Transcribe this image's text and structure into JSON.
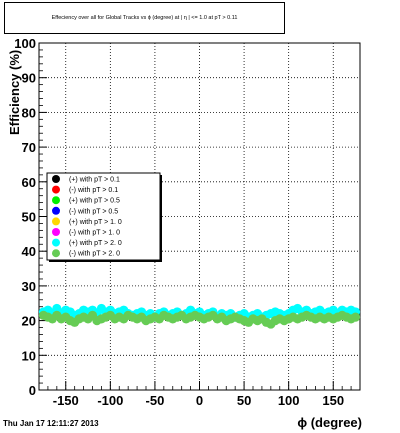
{
  "title_box": {
    "text": "Effeciency over all for Global Tracks vs ϕ (degree) at | η | <= 1.0 at pT > 0.11"
  },
  "timestamp": "Thu Jan 17 12:11:27 2013",
  "chart_data": {
    "type": "scatter",
    "title": "Effeciency over all for Global Tracks vs ϕ (degree) at | η | <= 1.0 at pT > 0.11",
    "xlabel": "ϕ (degree)",
    "ylabel": "Efficiency (%)",
    "xlim": [
      -180,
      180
    ],
    "ylim": [
      0,
      100
    ],
    "x_ticks": [
      -150,
      -100,
      -50,
      0,
      50,
      100,
      150
    ],
    "y_ticks": [
      0,
      10,
      20,
      30,
      40,
      50,
      60,
      70,
      80,
      90,
      100
    ],
    "grid": true,
    "legend_position": "middle-left",
    "series": [
      {
        "name": "(+) with pT > 0.1",
        "color": "#000000",
        "points": []
      },
      {
        "name": "(-) with pT > 0.1",
        "color": "#ff0000",
        "points": []
      },
      {
        "name": "(+) with pT > 0.5",
        "color": "#00ee00",
        "points": []
      },
      {
        "name": "(-) with pT > 0.5",
        "color": "#0000ff",
        "points": []
      },
      {
        "name": "(+) with pT > 1. 0",
        "color": "#ffd700",
        "points": []
      },
      {
        "name": "(-) with pT > 1. 0",
        "color": "#ff00ff",
        "points": []
      },
      {
        "name": "(+) with pT > 2. 0",
        "color": "#00ffff",
        "points": [
          [
            -175,
            22.5
          ],
          [
            -170,
            23
          ],
          [
            -165,
            22
          ],
          [
            -160,
            23.5
          ],
          [
            -155,
            22
          ],
          [
            -150,
            23
          ],
          [
            -145,
            22.5
          ],
          [
            -140,
            21.5
          ],
          [
            -135,
            22
          ],
          [
            -130,
            23
          ],
          [
            -125,
            22.5
          ],
          [
            -120,
            23
          ],
          [
            -115,
            22
          ],
          [
            -110,
            23.5
          ],
          [
            -105,
            22.5
          ],
          [
            -100,
            23
          ],
          [
            -95,
            22
          ],
          [
            -90,
            22.5
          ],
          [
            -85,
            23
          ],
          [
            -80,
            22
          ],
          [
            -75,
            21.5
          ],
          [
            -70,
            22
          ],
          [
            -65,
            22.5
          ],
          [
            -60,
            21.5
          ],
          [
            -55,
            22
          ],
          [
            -50,
            21
          ],
          [
            -45,
            22
          ],
          [
            -40,
            22.5
          ],
          [
            -35,
            21.5
          ],
          [
            -30,
            22
          ],
          [
            -25,
            22.5
          ],
          [
            -20,
            21.5
          ],
          [
            -15,
            22
          ],
          [
            -10,
            23
          ],
          [
            -5,
            22
          ],
          [
            0,
            22.5
          ],
          [
            5,
            21.5
          ],
          [
            10,
            22
          ],
          [
            15,
            22.5
          ],
          [
            20,
            21
          ],
          [
            25,
            22
          ],
          [
            30,
            21.5
          ],
          [
            35,
            22
          ],
          [
            40,
            21
          ],
          [
            45,
            21.5
          ],
          [
            50,
            22
          ],
          [
            55,
            21
          ],
          [
            60,
            21.5
          ],
          [
            65,
            22
          ],
          [
            70,
            21
          ],
          [
            75,
            21.5
          ],
          [
            80,
            22
          ],
          [
            85,
            22.5
          ],
          [
            90,
            22
          ],
          [
            95,
            21.5
          ],
          [
            100,
            22
          ],
          [
            105,
            23
          ],
          [
            110,
            23.5
          ],
          [
            115,
            22.5
          ],
          [
            120,
            23
          ],
          [
            125,
            22
          ],
          [
            130,
            22.5
          ],
          [
            135,
            23
          ],
          [
            140,
            22
          ],
          [
            145,
            22.5
          ],
          [
            150,
            23
          ],
          [
            155,
            22
          ],
          [
            160,
            23
          ],
          [
            165,
            22.5
          ],
          [
            170,
            23
          ],
          [
            175,
            22.5
          ]
        ]
      },
      {
        "name": "(-) with pT > 2. 0",
        "color": "#66cc55",
        "points": [
          [
            -175,
            21.5
          ],
          [
            -170,
            21
          ],
          [
            -165,
            20.5
          ],
          [
            -160,
            21.5
          ],
          [
            -155,
            20.5
          ],
          [
            -150,
            21
          ],
          [
            -145,
            20
          ],
          [
            -140,
            19.5
          ],
          [
            -135,
            20.5
          ],
          [
            -130,
            21
          ],
          [
            -125,
            20.5
          ],
          [
            -120,
            21.5
          ],
          [
            -115,
            20
          ],
          [
            -110,
            20.5
          ],
          [
            -105,
            21
          ],
          [
            -100,
            21.5
          ],
          [
            -95,
            20.5
          ],
          [
            -90,
            21
          ],
          [
            -85,
            20.5
          ],
          [
            -80,
            21.5
          ],
          [
            -75,
            21
          ],
          [
            -70,
            20.5
          ],
          [
            -65,
            21
          ],
          [
            -60,
            20
          ],
          [
            -55,
            20.5
          ],
          [
            -50,
            21
          ],
          [
            -45,
            20.5
          ],
          [
            -40,
            21.5
          ],
          [
            -35,
            21
          ],
          [
            -30,
            20.5
          ],
          [
            -25,
            21
          ],
          [
            -20,
            21.5
          ],
          [
            -15,
            20.5
          ],
          [
            -10,
            21
          ],
          [
            -5,
            21.5
          ],
          [
            0,
            21
          ],
          [
            5,
            20.5
          ],
          [
            10,
            21
          ],
          [
            15,
            21.5
          ],
          [
            20,
            20.5
          ],
          [
            25,
            21
          ],
          [
            30,
            20
          ],
          [
            35,
            20.5
          ],
          [
            40,
            21
          ],
          [
            45,
            20.5
          ],
          [
            50,
            20
          ],
          [
            55,
            19.5
          ],
          [
            60,
            20.5
          ],
          [
            65,
            20
          ],
          [
            70,
            20.5
          ],
          [
            75,
            19.5
          ],
          [
            80,
            19
          ],
          [
            85,
            20
          ],
          [
            90,
            20.5
          ],
          [
            95,
            20
          ],
          [
            100,
            20.5
          ],
          [
            105,
            21
          ],
          [
            110,
            20.5
          ],
          [
            115,
            21
          ],
          [
            120,
            21.5
          ],
          [
            125,
            21
          ],
          [
            130,
            20.5
          ],
          [
            135,
            21
          ],
          [
            140,
            20.5
          ],
          [
            145,
            21
          ],
          [
            150,
            20.5
          ],
          [
            155,
            21
          ],
          [
            160,
            21.5
          ],
          [
            165,
            21
          ],
          [
            170,
            20.5
          ],
          [
            175,
            21
          ]
        ]
      }
    ]
  }
}
